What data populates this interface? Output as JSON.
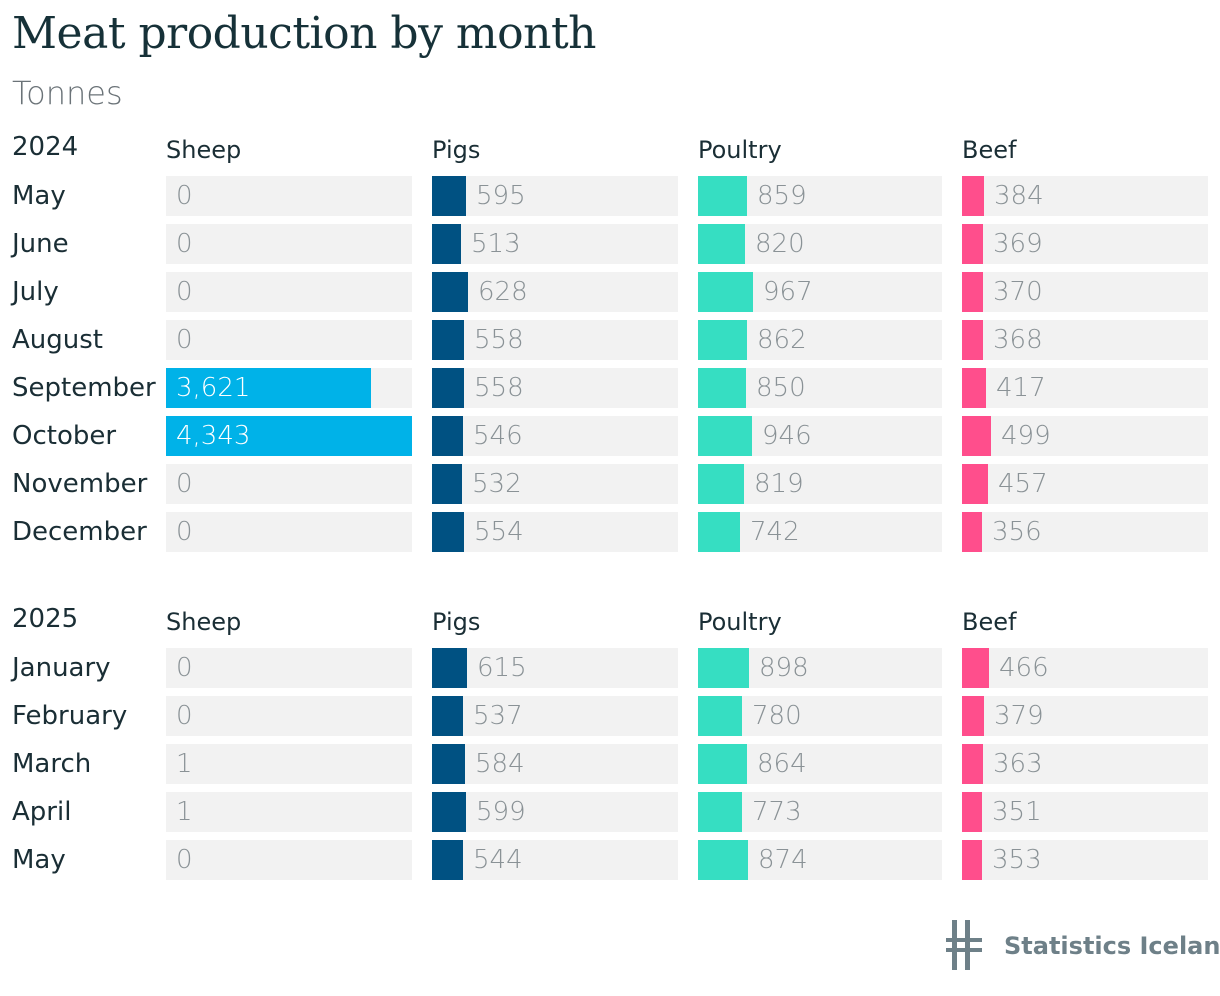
{
  "title": "Meat production by month",
  "subtitle": "Tonnes",
  "brand": "Statistics Iceland",
  "colors": {
    "Sheep": "#00b2e8",
    "Pigs": "#005182",
    "Poultry": "#36dec2",
    "Beef": "#ff4e8c",
    "track": "#f2f2f2"
  },
  "chart_data": [
    {
      "type": "bar",
      "title": "2024",
      "series_names": [
        "Sheep",
        "Pigs",
        "Poultry",
        "Beef"
      ],
      "categories": [
        "May",
        "June",
        "July",
        "August",
        "September",
        "October",
        "November",
        "December"
      ],
      "series": [
        {
          "name": "Sheep",
          "values": [
            0,
            0,
            0,
            0,
            3621,
            4343,
            0,
            0
          ]
        },
        {
          "name": "Pigs",
          "values": [
            595,
            513,
            628,
            558,
            558,
            546,
            532,
            554
          ]
        },
        {
          "name": "Poultry",
          "values": [
            859,
            820,
            967,
            862,
            850,
            946,
            819,
            742
          ]
        },
        {
          "name": "Beef",
          "values": [
            384,
            369,
            370,
            368,
            417,
            499,
            457,
            356
          ]
        }
      ]
    },
    {
      "type": "bar",
      "title": "2025",
      "series_names": [
        "Sheep",
        "Pigs",
        "Poultry",
        "Beef"
      ],
      "categories": [
        "January",
        "February",
        "March",
        "April",
        "May"
      ],
      "series": [
        {
          "name": "Sheep",
          "values": [
            0,
            0,
            1,
            1,
            0
          ]
        },
        {
          "name": "Pigs",
          "values": [
            615,
            537,
            584,
            599,
            544
          ]
        },
        {
          "name": "Poultry",
          "values": [
            898,
            780,
            864,
            773,
            874
          ]
        },
        {
          "name": "Beef",
          "values": [
            466,
            379,
            363,
            351,
            353
          ]
        }
      ]
    }
  ]
}
